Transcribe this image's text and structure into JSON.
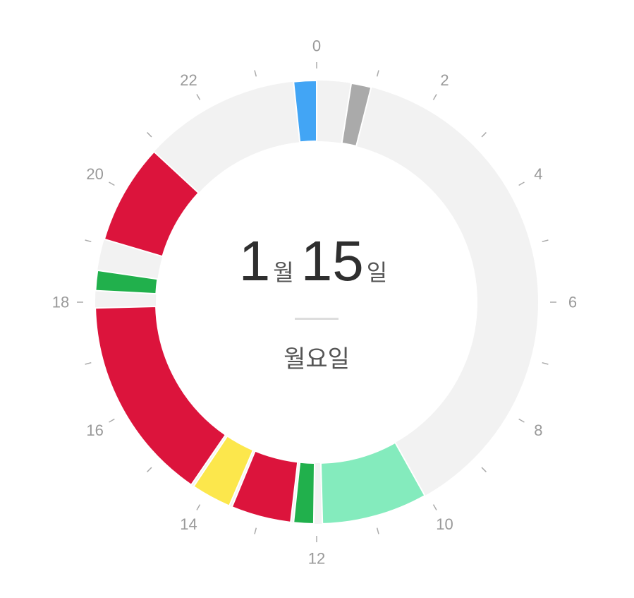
{
  "hour_labels": [
    "0",
    "2",
    "4",
    "6",
    "8",
    "10",
    "12",
    "14",
    "16",
    "18",
    "20",
    "22"
  ],
  "date": {
    "month": "1",
    "month_unit": "월",
    "day": "15",
    "day_unit": "일",
    "weekday": "월요일"
  },
  "colors": {
    "track": "#f2f2f2",
    "tick": "#aaaaaa",
    "label": "#999999"
  },
  "segments": [
    {
      "start": 23.6,
      "end": 24.0,
      "color": "#42a5f5",
      "icon": "none"
    },
    {
      "start": 0.6,
      "end": 0.95,
      "color": "#aaaaaa",
      "icon": "none"
    },
    {
      "start": 10.05,
      "end": 11.9,
      "color": "#84ebbd",
      "icon": "none"
    },
    {
      "start": 12.05,
      "end": 12.4,
      "color": "#21b04c",
      "icon": "none"
    },
    {
      "start": 12.45,
      "end": 13.5,
      "color": "#dc143c",
      "icon": "none"
    },
    {
      "start": 13.55,
      "end": 14.25,
      "color": "#fce74c",
      "icon": "none"
    },
    {
      "start": 14.3,
      "end": 17.9,
      "color": "#dc143c",
      "icon": "none"
    },
    {
      "start": 18.2,
      "end": 18.55,
      "color": "#21b04c",
      "icon": "none"
    },
    {
      "start": 19.1,
      "end": 20.85,
      "color": "#dc143c",
      "icon": "none"
    }
  ]
}
